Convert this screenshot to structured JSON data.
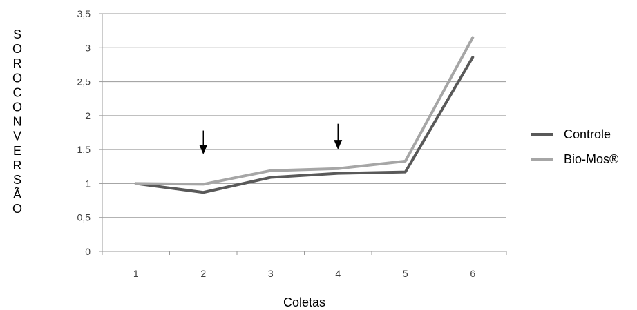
{
  "chart_data": {
    "type": "line",
    "title": "",
    "xlabel": "Coletas",
    "ylabel": "SOROCONVERSÃO",
    "categories": [
      "1",
      "2",
      "3",
      "4",
      "5",
      "6"
    ],
    "ylim": [
      0,
      3.5
    ],
    "yticks": [
      "0",
      "0,5",
      "1",
      "1,5",
      "2",
      "2,5",
      "3",
      "3,5"
    ],
    "grid": true,
    "legend_position": "right",
    "series": [
      {
        "name": "Controle",
        "color": "#595959",
        "values": [
          1.0,
          0.87,
          1.09,
          1.15,
          1.17,
          2.86
        ]
      },
      {
        "name": "Bio-Mos®",
        "color": "#a6a6a6",
        "values": [
          1.0,
          0.99,
          1.19,
          1.22,
          1.33,
          3.15
        ]
      }
    ],
    "annotations": [
      {
        "type": "arrow-down",
        "x": "2",
        "y_top": 1.78,
        "y_bottom": 1.45
      },
      {
        "type": "arrow-down",
        "x": "4",
        "y_top": 1.88,
        "y_bottom": 1.52
      }
    ]
  }
}
